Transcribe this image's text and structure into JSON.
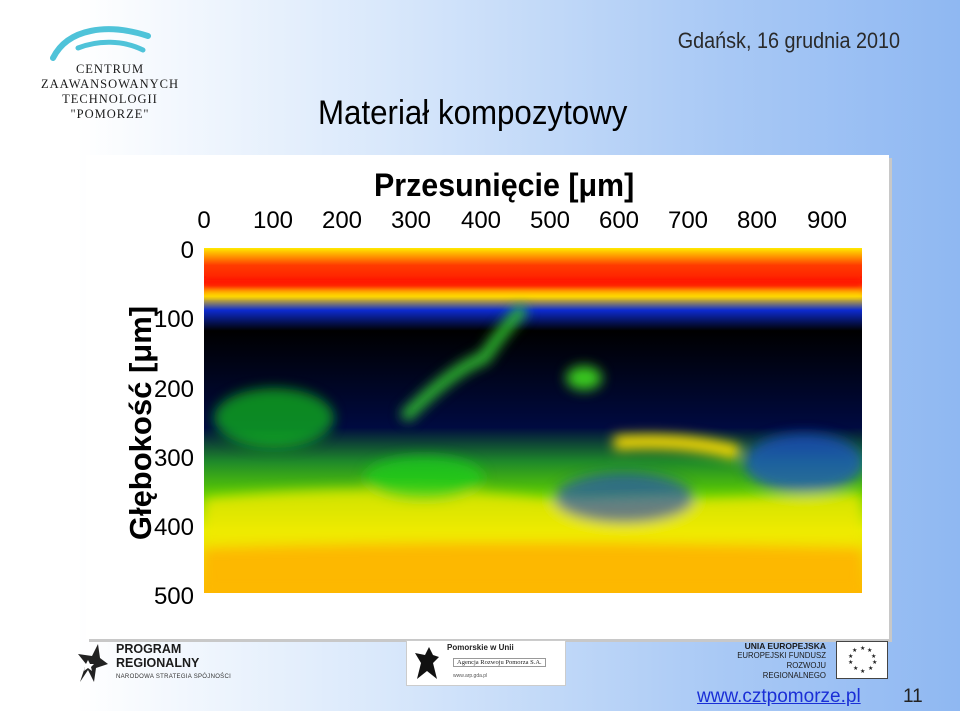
{
  "header": {
    "logo_text": [
      "CENTRUM",
      "ZAAWANSOWANYCH",
      "TECHNOLOGII",
      "\"POMORZE\""
    ],
    "date": "Gdańsk, 16 grudnia 2010",
    "title": "Materiał kompozytowy"
  },
  "figure": {
    "x_title": "Przesunięcie [μm]",
    "y_title": "Głębokość [μm]",
    "x_ticks": [
      "0",
      "100",
      "200",
      "300",
      "400",
      "500",
      "600",
      "700",
      "800",
      "900"
    ],
    "y_ticks": [
      "0",
      "100",
      "200",
      "300",
      "400",
      "500"
    ]
  },
  "footer": {
    "program_title_1": "PROGRAM",
    "program_title_2": "REGIONALNY",
    "program_sub": "NARODOWA STRATEGIA SPÓJNOŚCI",
    "pomorskie_1": "Pomorskie w Unii",
    "pomorskie_2": "Agencja Rozwoju Pomorza S.A.",
    "pomorskie_3": "www.arp.gda.pl",
    "ue_1": "UNIA EUROPEJSKA",
    "ue_2": "EUROPEJSKI FUNDUSZ",
    "ue_3": "ROZWOJU REGIONALNEGO",
    "url": "www.cztpomorze.pl",
    "page": "11"
  },
  "colors": {
    "heat_low": "#00008b",
    "heat_high": "#ff0000",
    "url": "#1a2fd6"
  }
}
